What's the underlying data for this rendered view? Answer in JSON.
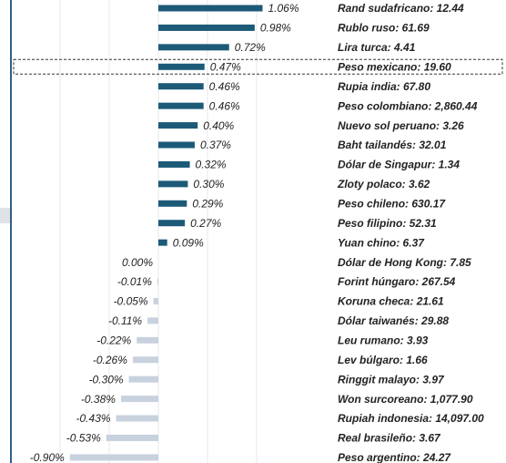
{
  "chart_data": {
    "type": "bar",
    "orientation": "horizontal",
    "categories": [
      "Rand sudafricano: 12.44",
      "Rublo ruso: 61.69",
      "Lira turca: 4.41",
      "Peso mexicano: 19.60",
      "Rupia india: 67.80",
      "Peso colombiano: 2,860.44",
      "Nuevo sol peruano: 3.26",
      "Baht tailandés: 32.01",
      "Dólar de Singapur: 1.34",
      "Zloty polaco: 3.62",
      "Peso chileno: 630.17",
      "Peso filipino: 52.31",
      "Yuan chino: 6.37",
      "Dólar de Hong Kong: 7.85",
      "Forint húngaro: 267.54",
      "Koruna checa: 21.61",
      "Dólar taiwanés: 29.88",
      "Leu rumano: 3.93",
      "Lev búlgaro: 1.66",
      "Ringgit malayo: 3.97",
      "Won surcoreano: 1,077.90",
      "Rupiah indonesia: 14,097.00",
      "Real brasileño: 3.67",
      "Peso argentino: 24.27"
    ],
    "values": [
      1.06,
      0.98,
      0.72,
      0.47,
      0.46,
      0.46,
      0.4,
      0.37,
      0.32,
      0.3,
      0.29,
      0.27,
      0.09,
      0.0,
      -0.01,
      -0.05,
      -0.11,
      -0.22,
      -0.26,
      -0.3,
      -0.38,
      -0.43,
      -0.53,
      -0.9
    ],
    "value_labels": [
      "1.06%",
      "0.98%",
      "0.72%",
      "0.47%",
      "0.46%",
      "0.46%",
      "0.40%",
      "0.37%",
      "0.32%",
      "0.30%",
      "0.29%",
      "0.27%",
      "0.09%",
      "0.00%",
      "-0.01%",
      "-0.05%",
      "-0.11%",
      "-0.22%",
      "-0.26%",
      "-0.30%",
      "-0.38%",
      "-0.43%",
      "-0.53%",
      "-0.90%"
    ],
    "positive_color": "#1c5a78",
    "negative_color": "#c8d2de",
    "xlim": [
      -1.5,
      1.5
    ],
    "xticks": [
      -1,
      -0.5,
      0,
      0.5,
      1
    ],
    "grid": true,
    "highlight": "Peso mexicano: 19.60"
  }
}
